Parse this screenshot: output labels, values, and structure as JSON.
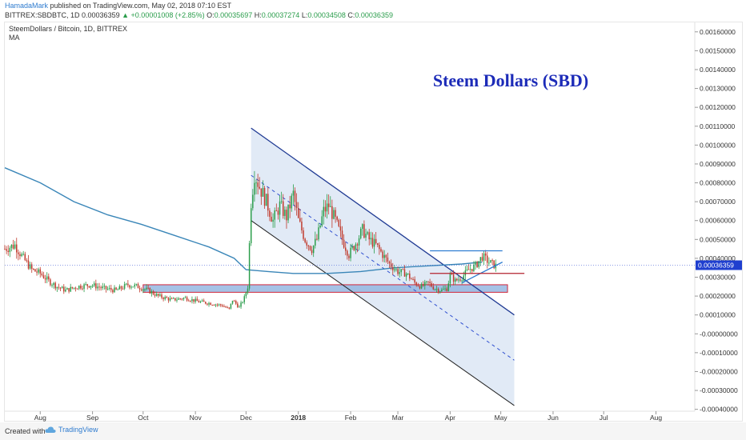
{
  "header": {
    "author": "HamadaMark",
    "published_text": "published on TradingView.com, May 02, 2018 07:10 EST"
  },
  "quote": {
    "symbol": "BITTREX:SBDBTC, 1D",
    "last": "0.00036359",
    "arrow": "▲",
    "change": "+0.00001008 (+2.85%)",
    "o_label": "O:",
    "o": "0.00035697",
    "h_label": "H:",
    "h": "0.00037274",
    "l_label": "L:",
    "l": "0.00034508",
    "c_label": "C:",
    "c": "0.00036359"
  },
  "legend": {
    "title": "SteemDollars / Bitcoin, 1D, BITTREX",
    "indicator": "MA"
  },
  "footer": {
    "created_with": "Created with",
    "brand": "TradingView"
  },
  "colors": {
    "up": "#2a9d4b",
    "down": "#c0392b",
    "ma": "#3a86b8",
    "channel_line": "#1f3a93",
    "channel_fill": "#c9d9ee",
    "support_zone": "#8fb3e0",
    "support_border": "#d0253a",
    "price_tag": "#1f3fcf",
    "annotation": "#1c2bb8"
  },
  "chart_data": {
    "type": "candlestick",
    "title": "Steem Dollars (SBD)",
    "y_axis_side": "right",
    "ylim": [
      -0.00041,
      0.00165
    ],
    "y_ticks": [
      "0.00160000",
      "0.00150000",
      "0.00140000",
      "0.00130000",
      "0.00120000",
      "0.00110000",
      "0.00100000",
      "0.00090000",
      "0.00080000",
      "0.00070000",
      "0.00060000",
      "0.00050000",
      "0.00040000",
      "0.00030000",
      "0.00020000",
      "0.00010000",
      "-0.00000000",
      "-0.00010000",
      "-0.00020000",
      "-0.00030000",
      "-0.00040000"
    ],
    "y_tick_values": [
      0.0016,
      0.0015,
      0.0014,
      0.0013,
      0.0012,
      0.0011,
      0.001,
      0.0009,
      0.0008,
      0.0007,
      0.0006,
      0.0005,
      0.0004,
      0.0003,
      0.0002,
      0.0001,
      0,
      -0.0001,
      -0.0002,
      -0.0003,
      -0.0004
    ],
    "x_ticks": [
      {
        "label": "Aug",
        "day": 0,
        "bold": false
      },
      {
        "label": "Sep",
        "day": 31,
        "bold": false
      },
      {
        "label": "Oct",
        "day": 61,
        "bold": false
      },
      {
        "label": "Nov",
        "day": 92,
        "bold": false
      },
      {
        "label": "Dec",
        "day": 122,
        "bold": false
      },
      {
        "label": "2018",
        "day": 153,
        "bold": true
      },
      {
        "label": "Feb",
        "day": 184,
        "bold": false
      },
      {
        "label": "Mar",
        "day": 212,
        "bold": false
      },
      {
        "label": "Apr",
        "day": 243,
        "bold": false
      },
      {
        "label": "May",
        "day": 273,
        "bold": false
      },
      {
        "label": "Jun",
        "day": 304,
        "bold": false
      },
      {
        "label": "Jul",
        "day": 334,
        "bold": false
      },
      {
        "label": "Aug",
        "day": 365,
        "bold": false
      }
    ],
    "x_range_days": [
      -21,
      388
    ],
    "last_price": 0.00036359,
    "last_price_label": "0.00036359",
    "close_path": [
      [
        -21,
        0.00045
      ],
      [
        -15,
        0.00047
      ],
      [
        -10,
        0.0004
      ],
      [
        -5,
        0.00034
      ],
      [
        0,
        0.00032
      ],
      [
        5,
        0.00028
      ],
      [
        10,
        0.00025
      ],
      [
        15,
        0.00023
      ],
      [
        22,
        0.00025
      ],
      [
        30,
        0.00026
      ],
      [
        38,
        0.00024
      ],
      [
        45,
        0.00023
      ],
      [
        52,
        0.00026
      ],
      [
        58,
        0.00025
      ],
      [
        64,
        0.00023
      ],
      [
        70,
        0.0002
      ],
      [
        78,
        0.00018
      ],
      [
        86,
        0.00019
      ],
      [
        94,
        0.00017
      ],
      [
        102,
        0.00016
      ],
      [
        108,
        0.00015
      ],
      [
        112,
        0.00013
      ],
      [
        114,
        0.00018
      ],
      [
        118,
        0.00014
      ],
      [
        121,
        0.00019
      ],
      [
        123,
        0.00025
      ],
      [
        125,
        0.0007
      ],
      [
        127,
        0.00085
      ],
      [
        130,
        0.00078
      ],
      [
        134,
        0.0007
      ],
      [
        138,
        0.0006
      ],
      [
        142,
        0.00068
      ],
      [
        146,
        0.00062
      ],
      [
        150,
        0.00074
      ],
      [
        153,
        0.0006
      ],
      [
        157,
        0.0005
      ],
      [
        161,
        0.00045
      ],
      [
        164,
        0.0005
      ],
      [
        168,
        0.00065
      ],
      [
        171,
        0.00068
      ],
      [
        175,
        0.0006
      ],
      [
        179,
        0.0005
      ],
      [
        183,
        0.00042
      ],
      [
        187,
        0.00048
      ],
      [
        191,
        0.00055
      ],
      [
        195,
        0.0005
      ],
      [
        199,
        0.00047
      ],
      [
        203,
        0.00042
      ],
      [
        207,
        0.00037
      ],
      [
        212,
        0.00033
      ],
      [
        217,
        0.00032
      ],
      [
        222,
        0.00027
      ],
      [
        226,
        0.00025
      ],
      [
        230,
        0.00027
      ],
      [
        234,
        0.00024
      ],
      [
        238,
        0.00023
      ],
      [
        241,
        0.00024
      ],
      [
        243,
        0.00031
      ],
      [
        246,
        0.00028
      ],
      [
        250,
        0.0003
      ],
      [
        254,
        0.00034
      ],
      [
        258,
        0.00036
      ],
      [
        262,
        0.00041
      ],
      [
        266,
        0.00038
      ],
      [
        270,
        0.00036
      ]
    ],
    "ma_path": [
      [
        -21,
        0.00088
      ],
      [
        0,
        0.0008
      ],
      [
        20,
        0.0007
      ],
      [
        40,
        0.00063
      ],
      [
        60,
        0.00058
      ],
      [
        80,
        0.00052
      ],
      [
        100,
        0.00046
      ],
      [
        115,
        0.0004
      ],
      [
        122,
        0.00034
      ],
      [
        135,
        0.00033
      ],
      [
        150,
        0.00032
      ],
      [
        170,
        0.00032
      ],
      [
        190,
        0.00033
      ],
      [
        210,
        0.00035
      ],
      [
        230,
        0.00036
      ],
      [
        250,
        0.00037
      ],
      [
        262,
        0.00038
      ]
    ],
    "channel": {
      "upper": [
        [
          125,
          0.00109
        ],
        [
          281,
          0.0001
        ]
      ],
      "lower": [
        [
          125,
          0.0006
        ],
        [
          281,
          -0.00038
        ]
      ],
      "mid": [
        [
          125,
          0.00084
        ],
        [
          281,
          -0.00014
        ]
      ]
    },
    "support_zone": {
      "x": [
        61,
        277
      ],
      "y": [
        0.00022,
        0.00026
      ]
    },
    "resistance_line": {
      "x": [
        231,
        274
      ],
      "y": 0.00044
    },
    "rising_trend": {
      "from": [
        250,
        0.00027
      ],
      "to": [
        274,
        0.00038
      ]
    },
    "horizontal_red": {
      "x": [
        231,
        287
      ],
      "y": 0.00032
    }
  }
}
